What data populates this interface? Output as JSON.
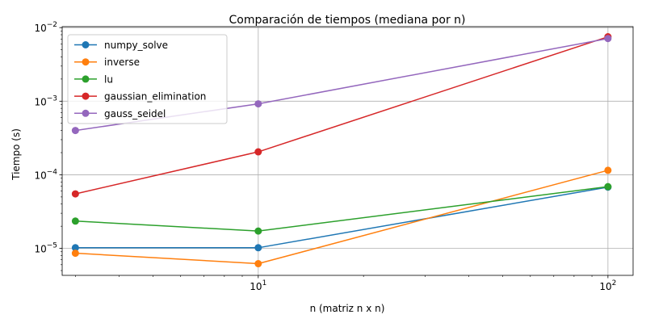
{
  "chart_data": {
    "type": "line",
    "title": "Comparación de tiempos (mediana por n)",
    "xlabel": "n (matriz n x n)",
    "ylabel": "Tiempo (s)",
    "x_scale": "log",
    "y_scale": "log",
    "xlim": [
      2.75,
      118
    ],
    "ylim": [
      4.3e-06,
      0.0103
    ],
    "x": [
      3,
      10,
      100
    ],
    "x_ticks": [
      10,
      100
    ],
    "y_ticks": [
      1e-05,
      0.0001,
      0.001,
      0.01
    ],
    "grid": true,
    "legend_position": "upper-left",
    "series": [
      {
        "name": "numpy_solve",
        "color": "#1f77b4",
        "values": [
          1.02e-05,
          1.02e-05,
          6.8e-05
        ]
      },
      {
        "name": "inverse",
        "color": "#ff7f0e",
        "values": [
          8.6e-06,
          6.2e-06,
          0.000115
        ]
      },
      {
        "name": "lu",
        "color": "#2ca02c",
        "values": [
          2.35e-05,
          1.72e-05,
          6.9e-05
        ]
      },
      {
        "name": "gaussian_elimination",
        "color": "#d62728",
        "values": [
          5.5e-05,
          0.000205,
          0.0075
        ]
      },
      {
        "name": "gauss_seidel",
        "color": "#9467bd",
        "values": [
          0.0004,
          0.00092,
          0.0071
        ]
      }
    ]
  }
}
